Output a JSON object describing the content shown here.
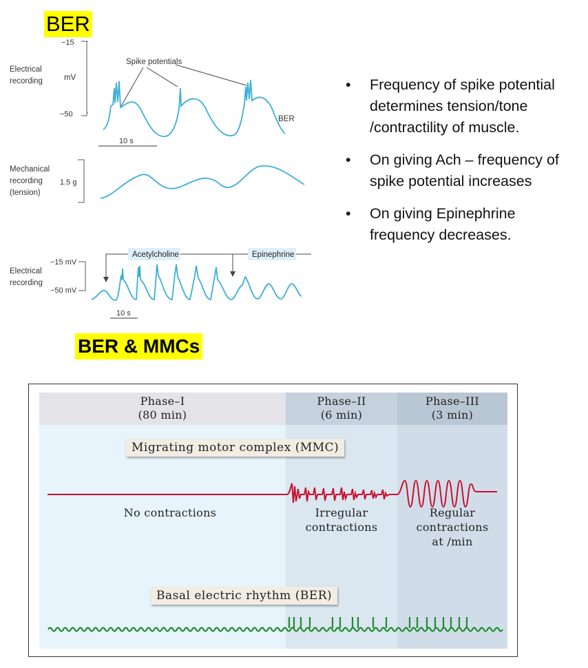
{
  "ber_title": "BER",
  "mmc_title": "BER & MMCs",
  "top_figure": {
    "electrical_recording_label_1": "Electrical",
    "electrical_recording_label_2": "recording",
    "mv_unit": "mV",
    "tick_top": "−15",
    "tick_bottom": "−50",
    "spike_potentials": "Spike potentials",
    "ber_trace_label": "BER",
    "time_scale": "10 s",
    "mechanical_label_1": "Mechanical",
    "mechanical_label_2": "recording",
    "mechanical_label_3": "(tension)",
    "tension_scale": "1.5 g",
    "electrical2_label_1": "Electrical",
    "electrical2_label_2": "recording",
    "tick2_top": "−15 mV",
    "tick2_bottom": "−50 mV",
    "acetylcholine": "Acetylcholine",
    "epinephrine": "Epinephrine",
    "time_scale_2": "10 s",
    "trace_color": "#3aaed8"
  },
  "bullets": [
    "Frequency of spike potential determines tension/tone /contractility of muscle.",
    "On giving Ach – frequency of spike potential increases",
    "On giving Epinephrine frequency decreases."
  ],
  "mmc_figure": {
    "phases": [
      {
        "name": "Phase–I",
        "duration": "(80 min)"
      },
      {
        "name": "Phase–II",
        "duration": "(6 min)"
      },
      {
        "name": "Phase–III",
        "duration": "(3 min)"
      }
    ],
    "mmc_title": "Migrating motor complex (MMC)",
    "contraction_labels": [
      {
        "line1": "No contractions"
      },
      {
        "line1": "Irregular",
        "line2": "contractions"
      },
      {
        "line1": "Regular",
        "line2": "contractions",
        "line3": "at /min"
      }
    ],
    "ber_label": "Basal electric rhythm (BER)",
    "mmc_color": "#c8102e",
    "ber_color": "#1e8a2e"
  }
}
